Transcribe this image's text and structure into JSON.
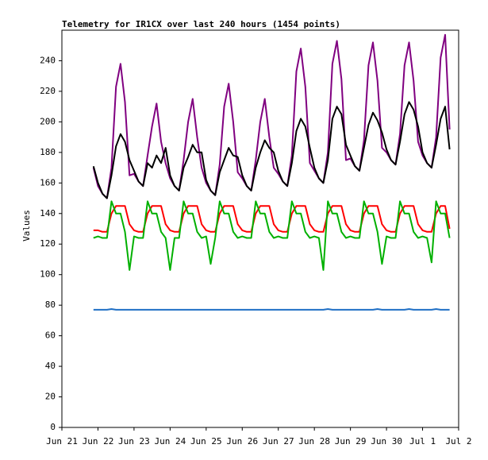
{
  "chart_data": {
    "type": "line",
    "title": "Telemetry for IR1CX over last 240 hours (1454 points)",
    "y_label": "Values",
    "xlim": [
      0,
      11
    ],
    "xticks": [
      {
        "value": 0,
        "label": "Jun 21"
      },
      {
        "value": 1,
        "label": "Jun 22"
      },
      {
        "value": 2,
        "label": "Jun 23"
      },
      {
        "value": 3,
        "label": "Jun 24"
      },
      {
        "value": 4,
        "label": "Jun 25"
      },
      {
        "value": 5,
        "label": "Jun 26"
      },
      {
        "value": 6,
        "label": "Jun 27"
      },
      {
        "value": 7,
        "label": "Jun 28"
      },
      {
        "value": 8,
        "label": "Jun 29"
      },
      {
        "value": 9,
        "label": "Jun 30"
      },
      {
        "value": 10,
        "label": "Jul 1"
      },
      {
        "value": 11,
        "label": "Jul 2"
      }
    ],
    "ylim": [
      0,
      260
    ],
    "yticks": [
      0,
      20,
      40,
      60,
      80,
      100,
      120,
      140,
      160,
      180,
      200,
      220,
      240
    ],
    "x": [
      0.875,
      1,
      1.125,
      1.25,
      1.375,
      1.5,
      1.625,
      1.75,
      1.875,
      2,
      2.125,
      2.25,
      2.375,
      2.5,
      2.625,
      2.75,
      2.875,
      3,
      3.125,
      3.25,
      3.375,
      3.5,
      3.625,
      3.75,
      3.875,
      4,
      4.125,
      4.25,
      4.375,
      4.5,
      4.625,
      4.75,
      4.875,
      5,
      5.125,
      5.25,
      5.375,
      5.5,
      5.625,
      5.75,
      5.875,
      6,
      6.125,
      6.25,
      6.375,
      6.5,
      6.625,
      6.75,
      6.875,
      7,
      7.125,
      7.25,
      7.375,
      7.5,
      7.625,
      7.75,
      7.875,
      8,
      8.125,
      8.25,
      8.375,
      8.5,
      8.625,
      8.75,
      8.875,
      9,
      9.125,
      9.25,
      9.375,
      9.5,
      9.625,
      9.75,
      9.875,
      10,
      10.125,
      10.25,
      10.375,
      10.5,
      10.625,
      10.75
    ],
    "series": [
      {
        "color": "#800080",
        "values": [
          170,
          158,
          153,
          150,
          170,
          223,
          238,
          213,
          165,
          166,
          161,
          158,
          178,
          197,
          212,
          187,
          173,
          163,
          158,
          155,
          175,
          200,
          215,
          190,
          170,
          160,
          155,
          152,
          172,
          210,
          225,
          200,
          167,
          163,
          158,
          155,
          175,
          200,
          215,
          190,
          170,
          166,
          161,
          158,
          178,
          233,
          248,
          223,
          173,
          168,
          163,
          160,
          180,
          238,
          253,
          228,
          175,
          176,
          171,
          168,
          188,
          237,
          252,
          227,
          183,
          180,
          175,
          172,
          192,
          237,
          252,
          227,
          187,
          178,
          173,
          170,
          190,
          242,
          257,
          195
        ]
      },
      {
        "color": "#000000",
        "values": [
          171,
          160,
          153,
          150,
          165,
          184,
          192,
          187,
          175,
          168,
          161,
          158,
          173,
          170,
          178,
          173,
          183,
          165,
          158,
          155,
          170,
          177,
          185,
          180,
          180,
          162,
          155,
          152,
          167,
          175,
          183,
          178,
          177,
          165,
          158,
          155,
          170,
          180,
          188,
          183,
          180,
          168,
          161,
          158,
          173,
          194,
          202,
          197,
          183,
          170,
          163,
          160,
          175,
          202,
          210,
          205,
          185,
          178,
          171,
          168,
          183,
          198,
          206,
          201,
          193,
          182,
          175,
          172,
          187,
          205,
          213,
          208,
          197,
          180,
          173,
          170,
          185,
          202,
          210,
          182
        ]
      },
      {
        "color": "#ff0000",
        "values": [
          129,
          129,
          128,
          128,
          140,
          145,
          145,
          145,
          133,
          129,
          128,
          128,
          140,
          145,
          145,
          145,
          133,
          129,
          128,
          128,
          140,
          145,
          145,
          145,
          133,
          129,
          128,
          128,
          140,
          145,
          145,
          145,
          133,
          129,
          128,
          128,
          140,
          145,
          145,
          145,
          133,
          129,
          128,
          128,
          140,
          145,
          145,
          145,
          133,
          129,
          128,
          128,
          140,
          145,
          145,
          145,
          133,
          129,
          128,
          128,
          140,
          145,
          145,
          145,
          133,
          129,
          128,
          128,
          140,
          145,
          145,
          145,
          133,
          129,
          128,
          128,
          140,
          145,
          145,
          130
        ]
      },
      {
        "color": "#00b000",
        "values": [
          124,
          125,
          124,
          124,
          148,
          140,
          140,
          128,
          103,
          125,
          124,
          124,
          148,
          140,
          140,
          128,
          124,
          103,
          124,
          124,
          148,
          140,
          140,
          128,
          124,
          125,
          107,
          124,
          148,
          140,
          140,
          128,
          124,
          125,
          124,
          124,
          148,
          140,
          140,
          128,
          124,
          125,
          124,
          124,
          148,
          140,
          140,
          128,
          124,
          125,
          124,
          103,
          148,
          140,
          140,
          128,
          124,
          125,
          124,
          124,
          148,
          140,
          140,
          128,
          107,
          125,
          124,
          124,
          148,
          140,
          140,
          128,
          124,
          125,
          124,
          108,
          148,
          140,
          140,
          124
        ]
      },
      {
        "color": "#1f6fc5",
        "values": [
          77,
          77,
          77,
          77,
          77.5,
          77,
          77,
          77,
          77,
          77,
          77,
          77,
          77,
          77,
          77,
          77,
          77,
          77,
          77,
          77,
          77,
          77,
          77,
          77,
          77,
          77,
          77,
          77,
          77,
          77,
          77,
          77,
          77,
          77,
          77,
          77,
          77,
          77,
          77,
          77,
          77,
          77,
          77,
          77,
          77,
          77,
          77,
          77,
          77,
          77,
          77,
          77,
          77.5,
          77,
          77,
          77,
          77,
          77,
          77,
          77,
          77,
          77,
          77,
          77.5,
          77,
          77,
          77,
          77,
          77,
          77,
          77.5,
          77,
          77,
          77,
          77,
          77,
          77.5,
          77,
          77,
          77
        ]
      }
    ]
  }
}
